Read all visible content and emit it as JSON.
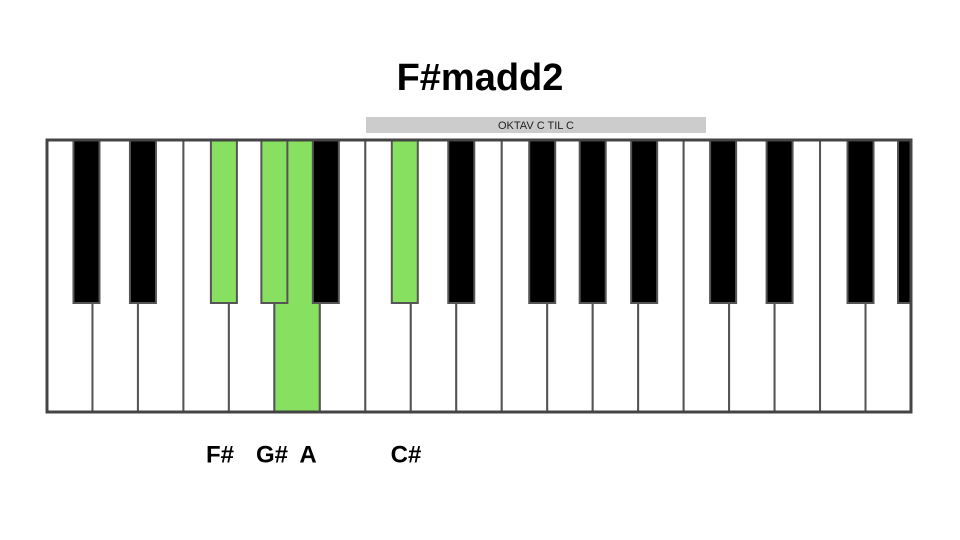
{
  "title": "F#madd2",
  "octave_label": "OKTAV C TIL C",
  "notes": [
    "F#",
    "G#",
    "A",
    "C#"
  ]
}
